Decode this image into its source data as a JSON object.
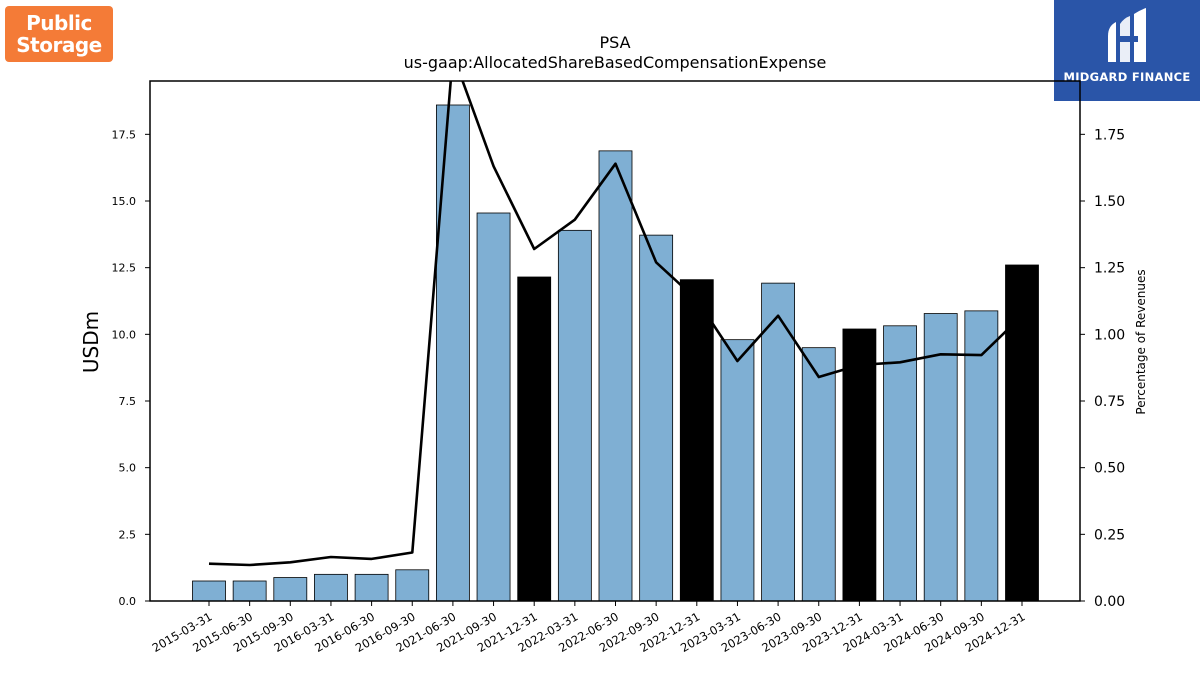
{
  "logos": {
    "left": {
      "line1": "Public",
      "line2": "Storage"
    },
    "right": {
      "name": "MIDGARD FINANCE"
    }
  },
  "chart_data": {
    "type": "bar",
    "title": "PSA",
    "subtitle": "us-gaap:AllocatedShareBasedCompensationExpense",
    "ylabel": "USDm",
    "y2label": "Percentage of Revenues",
    "ylim": [
      0,
      19.5
    ],
    "y2lim": [
      0,
      1.95
    ],
    "yticks": [
      "0.0",
      "2.5",
      "5.0",
      "7.5",
      "10.0",
      "12.5",
      "15.0",
      "17.5"
    ],
    "y2ticks": [
      "0.00",
      "0.25",
      "0.50",
      "0.75",
      "1.00",
      "1.25",
      "1.50",
      "1.75"
    ],
    "categories": [
      "2015-03-31",
      "2015-06-30",
      "2015-09-30",
      "2016-03-31",
      "2016-06-30",
      "2016-09-30",
      "2021-06-30",
      "2021-09-30",
      "2021-12-31",
      "2022-03-31",
      "2022-06-30",
      "2022-09-30",
      "2022-12-31",
      "2023-03-31",
      "2023-06-30",
      "2023-09-30",
      "2023-12-31",
      "2024-03-31",
      "2024-06-30",
      "2024-09-30",
      "2024-12-31"
    ],
    "bars": [
      0.75,
      0.75,
      0.88,
      1.0,
      1.0,
      1.17,
      18.6,
      14.55,
      12.15,
      13.9,
      16.88,
      13.72,
      12.05,
      9.8,
      11.92,
      9.5,
      10.2,
      10.32,
      10.78,
      10.88,
      12.6
    ],
    "bar_is_year_end": [
      false,
      false,
      false,
      false,
      false,
      false,
      false,
      false,
      true,
      false,
      false,
      false,
      true,
      false,
      false,
      false,
      true,
      false,
      false,
      false,
      true
    ],
    "line_pct_revenue": [
      0.14,
      0.135,
      0.145,
      0.165,
      0.158,
      0.182,
      2.05,
      1.63,
      1.32,
      1.43,
      1.64,
      1.27,
      1.13,
      0.9,
      1.07,
      0.84,
      0.885,
      0.895,
      0.925,
      0.922,
      1.07
    ],
    "colors": {
      "bar": "#7fafd3",
      "bar_year_end": "#000000",
      "line": "#000000"
    },
    "grid": false,
    "legend": "none"
  }
}
